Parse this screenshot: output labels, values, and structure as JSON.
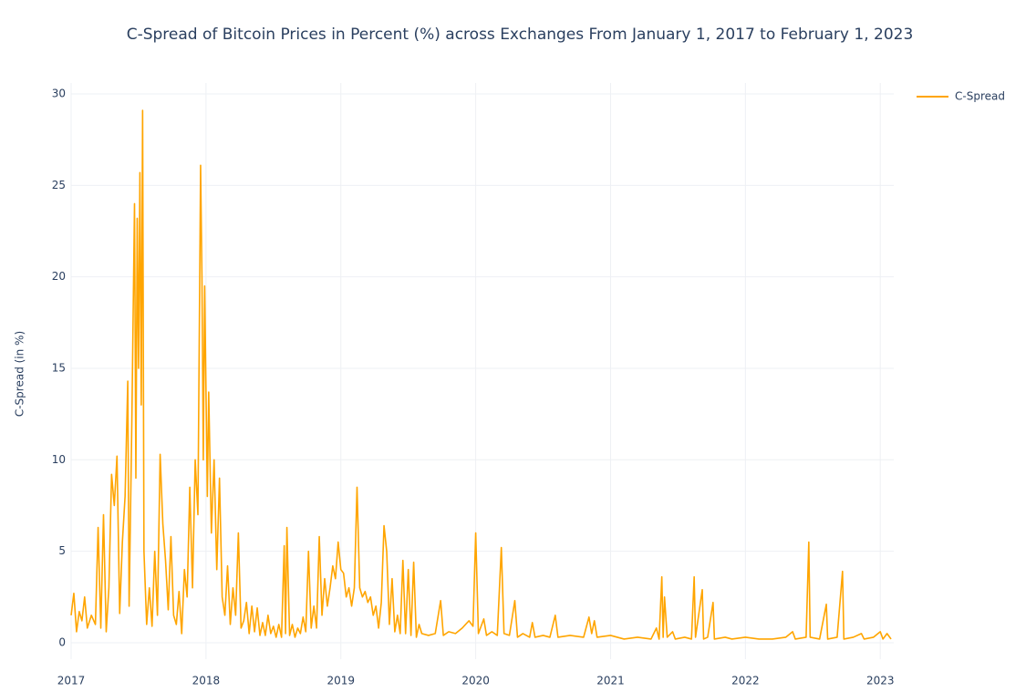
{
  "chart_data": {
    "type": "line",
    "title": "C-Spread of Bitcoin Prices in Percent (%) across Exchanges From January 1, 2017 to February 1, 2023",
    "y_label": "C-Spread (in %)",
    "legend_position": "top-right-outside",
    "grid": true,
    "xlim": [
      2017,
      2023.1
    ],
    "xticks": [
      2017,
      2018,
      2019,
      2020,
      2021,
      2022,
      2023
    ],
    "ylim": [
      -0.9,
      30.6
    ],
    "yticks": [
      0,
      5,
      10,
      15,
      20,
      25,
      30
    ],
    "x": [
      2017.0,
      2017.02,
      2017.04,
      2017.06,
      2017.08,
      2017.1,
      2017.12,
      2017.15,
      2017.18,
      2017.2,
      2017.22,
      2017.24,
      2017.26,
      2017.28,
      2017.3,
      2017.32,
      2017.34,
      2017.36,
      2017.38,
      2017.4,
      2017.42,
      2017.43,
      2017.45,
      2017.47,
      2017.48,
      2017.49,
      2017.5,
      2017.51,
      2017.52,
      2017.53,
      2017.54,
      2017.56,
      2017.58,
      2017.6,
      2017.62,
      2017.64,
      2017.66,
      2017.68,
      2017.7,
      2017.72,
      2017.74,
      2017.76,
      2017.78,
      2017.8,
      2017.82,
      2017.84,
      2017.86,
      2017.88,
      2017.9,
      2017.92,
      2017.94,
      2017.96,
      2017.97,
      2017.98,
      2017.99,
      2018.01,
      2018.02,
      2018.04,
      2018.06,
      2018.08,
      2018.1,
      2018.12,
      2018.14,
      2018.16,
      2018.18,
      2018.2,
      2018.22,
      2018.24,
      2018.26,
      2018.28,
      2018.3,
      2018.32,
      2018.34,
      2018.36,
      2018.38,
      2018.4,
      2018.42,
      2018.44,
      2018.46,
      2018.48,
      2018.5,
      2018.52,
      2018.54,
      2018.56,
      2018.58,
      2018.59,
      2018.6,
      2018.62,
      2018.64,
      2018.66,
      2018.68,
      2018.7,
      2018.72,
      2018.74,
      2018.76,
      2018.78,
      2018.8,
      2018.82,
      2018.84,
      2018.86,
      2018.88,
      2018.9,
      2018.92,
      2018.94,
      2018.96,
      2018.98,
      2019.0,
      2019.02,
      2019.04,
      2019.06,
      2019.08,
      2019.1,
      2019.12,
      2019.14,
      2019.16,
      2019.18,
      2019.2,
      2019.22,
      2019.24,
      2019.26,
      2019.28,
      2019.3,
      2019.32,
      2019.34,
      2019.36,
      2019.38,
      2019.4,
      2019.42,
      2019.44,
      2019.46,
      2019.48,
      2019.5,
      2019.52,
      2019.54,
      2019.56,
      2019.58,
      2019.6,
      2019.65,
      2019.7,
      2019.74,
      2019.76,
      2019.8,
      2019.85,
      2019.9,
      2019.95,
      2019.98,
      2020.0,
      2020.02,
      2020.06,
      2020.08,
      2020.12,
      2020.16,
      2020.19,
      2020.21,
      2020.25,
      2020.29,
      2020.31,
      2020.35,
      2020.4,
      2020.42,
      2020.44,
      2020.5,
      2020.55,
      2020.59,
      2020.61,
      2020.7,
      2020.8,
      2020.84,
      2020.86,
      2020.88,
      2020.9,
      2021.0,
      2021.1,
      2021.2,
      2021.3,
      2021.34,
      2021.36,
      2021.38,
      2021.39,
      2021.4,
      2021.42,
      2021.46,
      2021.48,
      2021.55,
      2021.6,
      2021.62,
      2021.63,
      2021.68,
      2021.69,
      2021.72,
      2021.76,
      2021.77,
      2021.85,
      2021.9,
      2022.0,
      2022.1,
      2022.2,
      2022.3,
      2022.35,
      2022.37,
      2022.45,
      2022.47,
      2022.48,
      2022.55,
      2022.6,
      2022.61,
      2022.68,
      2022.72,
      2022.73,
      2022.8,
      2022.86,
      2022.88,
      2022.95,
      2023.0,
      2023.02,
      2023.05,
      2023.08
    ],
    "series": [
      {
        "name": "C-Spread",
        "color": "#ffa500",
        "values": [
          1.5,
          2.7,
          0.6,
          1.7,
          1.2,
          2.5,
          0.8,
          1.5,
          1.0,
          6.3,
          0.8,
          7.0,
          0.6,
          3.0,
          9.2,
          7.5,
          10.2,
          1.6,
          5.5,
          8.0,
          14.3,
          2.0,
          12.0,
          24.0,
          9.0,
          23.2,
          15.0,
          25.7,
          13.0,
          29.1,
          5.0,
          1.0,
          3.0,
          0.9,
          5.0,
          1.5,
          10.3,
          6.5,
          4.5,
          1.8,
          5.8,
          1.5,
          1.0,
          2.8,
          0.5,
          4.0,
          2.5,
          8.5,
          3.0,
          10.0,
          7.0,
          26.1,
          20.0,
          10.0,
          19.5,
          8.0,
          13.7,
          6.0,
          10.0,
          4.0,
          9.0,
          2.5,
          1.5,
          4.2,
          1.0,
          3.0,
          1.5,
          6.0,
          0.8,
          1.2,
          2.2,
          0.5,
          2.0,
          0.6,
          1.9,
          0.4,
          1.1,
          0.4,
          1.5,
          0.5,
          0.9,
          0.3,
          1.0,
          0.3,
          5.3,
          0.5,
          6.3,
          0.4,
          1.0,
          0.3,
          0.8,
          0.5,
          1.4,
          0.6,
          5.0,
          0.8,
          2.0,
          0.8,
          5.8,
          1.5,
          3.5,
          2.0,
          3.0,
          4.2,
          3.5,
          5.5,
          4.0,
          3.8,
          2.5,
          3.0,
          2.0,
          3.0,
          8.5,
          3.0,
          2.5,
          2.8,
          2.2,
          2.5,
          1.5,
          2.0,
          0.8,
          2.2,
          6.4,
          5.0,
          1.0,
          3.5,
          0.6,
          1.5,
          0.5,
          4.5,
          0.5,
          4.0,
          0.4,
          4.4,
          0.3,
          1.0,
          0.5,
          0.4,
          0.5,
          2.3,
          0.4,
          0.6,
          0.5,
          0.8,
          1.2,
          0.9,
          6.0,
          0.5,
          1.3,
          0.4,
          0.6,
          0.4,
          5.2,
          0.5,
          0.4,
          2.3,
          0.3,
          0.5,
          0.3,
          1.1,
          0.3,
          0.4,
          0.3,
          1.5,
          0.3,
          0.4,
          0.3,
          1.4,
          0.5,
          1.2,
          0.3,
          0.4,
          0.2,
          0.3,
          0.2,
          0.8,
          0.2,
          3.6,
          0.3,
          2.5,
          0.3,
          0.6,
          0.2,
          0.3,
          0.2,
          3.6,
          0.3,
          2.9,
          0.2,
          0.3,
          2.2,
          0.2,
          0.3,
          0.2,
          0.3,
          0.2,
          0.2,
          0.3,
          0.6,
          0.2,
          0.3,
          5.5,
          0.3,
          0.2,
          2.1,
          0.2,
          0.3,
          3.9,
          0.2,
          0.3,
          0.5,
          0.2,
          0.3,
          0.6,
          0.2,
          0.5,
          0.2
        ]
      }
    ]
  }
}
